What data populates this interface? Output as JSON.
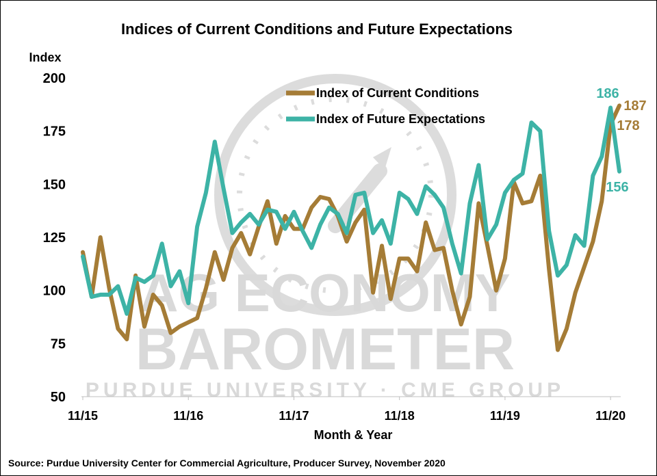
{
  "chart_data": {
    "type": "line",
    "title": "Indices of Current Conditions and Future Expectations",
    "ylabel": "Index",
    "xlabel": "Month & Year",
    "ylim": [
      50,
      200
    ],
    "yticks": [
      50,
      75,
      100,
      125,
      150,
      175,
      200
    ],
    "x_tick_labels": [
      "11/15",
      "11/16",
      "11/17",
      "11/18",
      "11/19",
      "11/20"
    ],
    "x_tick_index": [
      0,
      12,
      24,
      36,
      48,
      60
    ],
    "legend_placement": "top-center",
    "grid": false,
    "series": [
      {
        "name": "Index of Current Conditions",
        "color": "#a57c36",
        "values": [
          118,
          97,
          125,
          101,
          82,
          77,
          107,
          83,
          98,
          93,
          80,
          83,
          85,
          87,
          101,
          118,
          105,
          120,
          127,
          117,
          130,
          142,
          122,
          135,
          129,
          129,
          139,
          144,
          143,
          135,
          123,
          132,
          138,
          99,
          121,
          96,
          115,
          115,
          109,
          132,
          119,
          120,
          100,
          84,
          97,
          141,
          121,
          100,
          115,
          151,
          141,
          142,
          154,
          110,
          72,
          82,
          99,
          111,
          123,
          142,
          178,
          187
        ]
      },
      {
        "name": "Index of Future Expectations",
        "color": "#3db3a6",
        "values": [
          116,
          97,
          98,
          98,
          102,
          89,
          106,
          104,
          107,
          122,
          102,
          109,
          94,
          130,
          146,
          170,
          148,
          127,
          132,
          136,
          131,
          138,
          137,
          129,
          137,
          128,
          120,
          131,
          139,
          136,
          127,
          145,
          146,
          127,
          133,
          122,
          146,
          143,
          136,
          149,
          145,
          139,
          122,
          108,
          141,
          159,
          124,
          131,
          146,
          152,
          155,
          179,
          175,
          128,
          107,
          112,
          126,
          121,
          154,
          163,
          186,
          156
        ]
      }
    ],
    "end_labels": {
      "current_peak": "187",
      "current_prev": "178",
      "future_peak": "186",
      "future_last": "156"
    }
  },
  "watermark": {
    "line1": "AG ECONOMY",
    "line2": "BAROMETER",
    "line3": "PURDUE UNIVERSITY  ·  CME GROUP"
  },
  "source": "Source: Purdue University Center for Commercial Agriculture, Producer Survey, November 2020"
}
